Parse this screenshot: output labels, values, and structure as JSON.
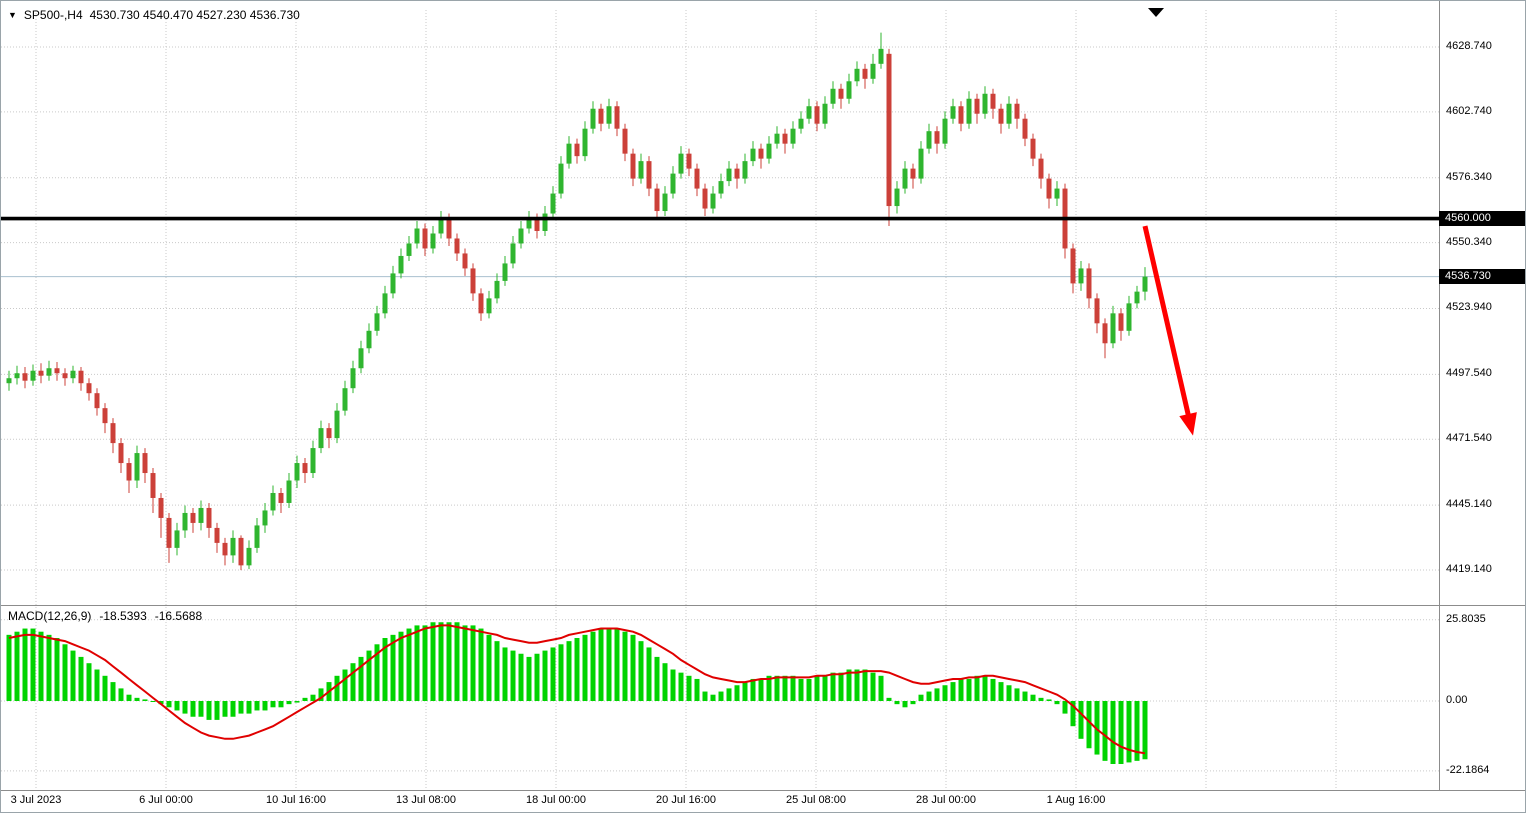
{
  "header": {
    "symbol_timeframe": "SP500-,H4",
    "ohlc": "4530.730 4540.470 4527.230 4536.730"
  },
  "macd_header": {
    "label": "MACD(12,26,9)",
    "main_value": "-18.5393",
    "signal_value": "-16.5688"
  },
  "colors": {
    "candle_up": "#2fb52f",
    "candle_down": "#cc4039",
    "macd_hist": "#00d300",
    "macd_signal": "#e00000",
    "grid": "#c9c9c9",
    "divider": "#8c8c8c",
    "arrow": "#ff0000",
    "level_line": "#000000",
    "current_price_line": "#a9c0cf",
    "badge_bg": "#000000",
    "badge_text": "#ffffff"
  },
  "chart_data": {
    "type": "candlestick",
    "title": "SP500-,H4",
    "last_ohlc": {
      "open": 4530.73,
      "high": 4540.47,
      "low": 4527.23,
      "close": 4536.73
    },
    "ylim": [
      4406,
      4645
    ],
    "y_ticks": [
      4628.74,
      4602.74,
      4576.34,
      4550.34,
      4523.94,
      4497.54,
      4471.54,
      4445.14,
      4419.14
    ],
    "x_tick_labels": [
      "3 Jul 2023",
      "6 Jul 00:00",
      "10 Jul 16:00",
      "13 Jul 08:00",
      "18 Jul 00:00",
      "20 Jul 16:00",
      "25 Jul 08:00",
      "28 Jul 00:00",
      "1 Aug 16:00"
    ],
    "horizontal_lines": [
      {
        "name": "resistance-level",
        "price": 4560.0,
        "label": "4560.000",
        "style": "solid-black-thick"
      },
      {
        "name": "current-price",
        "price": 4536.73,
        "label": "4536.730",
        "style": "thin-light-blue"
      }
    ],
    "candles": [
      [
        4494,
        4499,
        4491,
        4496
      ],
      [
        4496,
        4501,
        4493.5,
        4498
      ],
      [
        4498,
        4500.5,
        4492,
        4495
      ],
      [
        4495,
        4501.5,
        4493,
        4499
      ],
      [
        4499,
        4502,
        4494,
        4497
      ],
      [
        4497,
        4503,
        4495,
        4500
      ],
      [
        4500,
        4502.5,
        4495,
        4498
      ],
      [
        4498,
        4500,
        4493,
        4496
      ],
      [
        4496,
        4501,
        4494,
        4499
      ],
      [
        4499,
        4500.5,
        4491,
        4494
      ],
      [
        4494,
        4496,
        4487,
        4490
      ],
      [
        4490,
        4492,
        4481,
        4484
      ],
      [
        4484,
        4486,
        4474,
        4478
      ],
      [
        4478,
        4480,
        4466,
        4470
      ],
      [
        4470,
        4472,
        4458,
        4462
      ],
      [
        4462,
        4464,
        4450,
        4455
      ],
      [
        4455,
        4469,
        4452,
        4466
      ],
      [
        4466,
        4468,
        4454,
        4458
      ],
      [
        4458,
        4460,
        4442,
        4448
      ],
      [
        4448,
        4450,
        4432,
        4440
      ],
      [
        4440,
        4442,
        4422,
        4428
      ],
      [
        4428,
        4438,
        4425,
        4435
      ],
      [
        4435,
        4445,
        4432,
        4442
      ],
      [
        4442,
        4444,
        4434,
        4438
      ],
      [
        4438,
        4447,
        4435,
        4444
      ],
      [
        4444,
        4446,
        4432,
        4436
      ],
      [
        4436,
        4438,
        4426,
        4430
      ],
      [
        4430,
        4432,
        4421,
        4425
      ],
      [
        4425,
        4435,
        4422,
        4432
      ],
      [
        4432,
        4433,
        4419.1,
        4421
      ],
      [
        4421,
        4431,
        4419.5,
        4428
      ],
      [
        4428,
        4440,
        4426,
        4437
      ],
      [
        4437,
        4446,
        4434,
        4443
      ],
      [
        4443,
        4453,
        4441,
        4450
      ],
      [
        4450,
        4452,
        4442,
        4446
      ],
      [
        4446,
        4458,
        4444,
        4455
      ],
      [
        4455,
        4465,
        4452,
        4462
      ],
      [
        4462,
        4464,
        4454,
        4458
      ],
      [
        4458,
        4471,
        4456,
        4468
      ],
      [
        4468,
        4479,
        4466,
        4476
      ],
      [
        4476,
        4478,
        4468,
        4472
      ],
      [
        4472,
        4486,
        4470,
        4483
      ],
      [
        4483,
        4495,
        4481,
        4492
      ],
      [
        4492,
        4503,
        4490,
        4500
      ],
      [
        4500,
        4511,
        4498,
        4508
      ],
      [
        4508,
        4518,
        4506,
        4515
      ],
      [
        4515,
        4525,
        4513,
        4522
      ],
      [
        4522,
        4533,
        4520,
        4530
      ],
      [
        4530,
        4541,
        4528,
        4538
      ],
      [
        4538,
        4548,
        4536,
        4545
      ],
      [
        4545,
        4553,
        4543,
        4550
      ],
      [
        4550,
        4559,
        4548,
        4556
      ],
      [
        4556,
        4558,
        4545,
        4548
      ],
      [
        4548,
        4557,
        4546,
        4554
      ],
      [
        4554,
        4563,
        4552,
        4560
      ],
      [
        4560,
        4562,
        4549,
        4552
      ],
      [
        4552,
        4554,
        4543,
        4546
      ],
      [
        4546,
        4548,
        4537,
        4540
      ],
      [
        4540,
        4542,
        4527,
        4530
      ],
      [
        4530,
        4532,
        4519,
        4522
      ],
      [
        4522,
        4531,
        4520,
        4528
      ],
      [
        4528,
        4538,
        4526,
        4535
      ],
      [
        4535,
        4545,
        4533,
        4542
      ],
      [
        4542,
        4553,
        4540,
        4550
      ],
      [
        4550,
        4559,
        4548,
        4556
      ],
      [
        4556,
        4563,
        4554,
        4560
      ],
      [
        4560,
        4562,
        4552,
        4555
      ],
      [
        4555,
        4565,
        4553,
        4562
      ],
      [
        4562,
        4573,
        4560,
        4570
      ],
      [
        4570,
        4585,
        4568,
        4582
      ],
      [
        4582,
        4593,
        4580,
        4590
      ],
      [
        4590,
        4592,
        4582,
        4585
      ],
      [
        4585,
        4599,
        4583,
        4596
      ],
      [
        4596,
        4607,
        4594,
        4604
      ],
      [
        4604,
        4606,
        4595,
        4598
      ],
      [
        4598,
        4608,
        4596,
        4605
      ],
      [
        4605,
        4607,
        4593,
        4596
      ],
      [
        4596,
        4598,
        4583,
        4586
      ],
      [
        4586,
        4588,
        4573,
        4576
      ],
      [
        4576,
        4586,
        4574,
        4583
      ],
      [
        4583,
        4585,
        4569,
        4572
      ],
      [
        4572,
        4574,
        4560,
        4563
      ],
      [
        4563,
        4573,
        4561,
        4570
      ],
      [
        4570,
        4581,
        4568,
        4578
      ],
      [
        4578,
        4589,
        4576,
        4586
      ],
      [
        4586,
        4588,
        4577,
        4580
      ],
      [
        4580,
        4582,
        4569,
        4572
      ],
      [
        4572,
        4574,
        4561,
        4564
      ],
      [
        4564,
        4573,
        4562,
        4570
      ],
      [
        4570,
        4578,
        4568,
        4575
      ],
      [
        4575,
        4583,
        4573,
        4580
      ],
      [
        4580,
        4582,
        4572,
        4576
      ],
      [
        4576,
        4586,
        4574,
        4583
      ],
      [
        4583,
        4591,
        4581,
        4588
      ],
      [
        4588,
        4590,
        4580,
        4584
      ],
      [
        4584,
        4593,
        4582,
        4590
      ],
      [
        4590,
        4597,
        4588,
        4594
      ],
      [
        4594,
        4596,
        4586,
        4590
      ],
      [
        4590,
        4599,
        4588,
        4596
      ],
      [
        4596,
        4603,
        4594,
        4600
      ],
      [
        4600,
        4608,
        4598,
        4605
      ],
      [
        4605,
        4607,
        4595,
        4598
      ],
      [
        4598,
        4609,
        4596,
        4606
      ],
      [
        4606,
        4615,
        4604,
        4612
      ],
      [
        4612,
        4614,
        4604,
        4608
      ],
      [
        4608,
        4618,
        4606,
        4615
      ],
      [
        4615,
        4623,
        4613,
        4620
      ],
      [
        4620,
        4622,
        4612,
        4616
      ],
      [
        4616,
        4626,
        4614,
        4622
      ],
      [
        4622,
        4634.5,
        4620,
        4628
      ],
      [
        4626,
        4628,
        4557,
        4565
      ],
      [
        4565,
        4575,
        4562,
        4572
      ],
      [
        4572,
        4583,
        4570,
        4580
      ],
      [
        4580,
        4582,
        4572,
        4576
      ],
      [
        4576,
        4591,
        4574,
        4588
      ],
      [
        4588,
        4598,
        4586,
        4595
      ],
      [
        4595,
        4597,
        4586,
        4590
      ],
      [
        4590,
        4603,
        4588,
        4600
      ],
      [
        4600,
        4608,
        4598,
        4605
      ],
      [
        4605,
        4607,
        4595,
        4598
      ],
      [
        4598,
        4611,
        4596,
        4608
      ],
      [
        4608,
        4610,
        4598,
        4602
      ],
      [
        4602,
        4613,
        4600,
        4610
      ],
      [
        4610,
        4612,
        4600,
        4604
      ],
      [
        4604,
        4606,
        4594,
        4598
      ],
      [
        4598,
        4609,
        4596,
        4606
      ],
      [
        4606,
        4608,
        4596,
        4600
      ],
      [
        4600,
        4602,
        4589,
        4592
      ],
      [
        4592,
        4594,
        4581,
        4584
      ],
      [
        4584,
        4586,
        4572,
        4576
      ],
      [
        4576,
        4578,
        4564,
        4568
      ],
      [
        4568,
        4575,
        4565,
        4572
      ],
      [
        4572,
        4574,
        4544,
        4548
      ],
      [
        4548,
        4550,
        4530,
        4534
      ],
      [
        4534,
        4543,
        4531,
        4540
      ],
      [
        4540,
        4542,
        4524,
        4528
      ],
      [
        4528,
        4530,
        4514,
        4518
      ],
      [
        4518,
        4520,
        4504,
        4510
      ],
      [
        4510,
        4525,
        4508,
        4522
      ],
      [
        4522,
        4524,
        4511,
        4515
      ],
      [
        4515,
        4529,
        4513,
        4526
      ],
      [
        4526,
        4533,
        4524,
        4530.7
      ],
      [
        4530.7,
        4540.5,
        4527.2,
        4536.7
      ]
    ],
    "indicator": {
      "name": "MACD",
      "params": [
        12,
        26,
        9
      ],
      "main_value": -18.5393,
      "signal_value": -16.5688,
      "y_tick_labels": [
        "25.8035",
        "0.00",
        "-22.1864"
      ],
      "y_tick_values": [
        25.8035,
        0,
        -22.1864
      ],
      "histogram": [
        21,
        22,
        23,
        23,
        22,
        21,
        20,
        18,
        16,
        14,
        12,
        10,
        8,
        6,
        4,
        2,
        1,
        0.5,
        0,
        -1,
        -2,
        -3,
        -4,
        -5,
        -5,
        -6,
        -6,
        -5,
        -5,
        -4,
        -4,
        -3,
        -3,
        -2,
        -2,
        -1,
        -0.5,
        1,
        2,
        4,
        6,
        8,
        10,
        12,
        14,
        16,
        18,
        20,
        21,
        22,
        23,
        24,
        24,
        25,
        25,
        25,
        25,
        24,
        24,
        23,
        21,
        19,
        17,
        16,
        15,
        14,
        15,
        16,
        17,
        18,
        19,
        20,
        21,
        22,
        23,
        23,
        23,
        22,
        21,
        19,
        17,
        14,
        12,
        10,
        9,
        8,
        7,
        3,
        2,
        3,
        4,
        5,
        6,
        7,
        7,
        8,
        8,
        8,
        8,
        7,
        7,
        8,
        8,
        9,
        9,
        10,
        10,
        10,
        9,
        8,
        1,
        -1,
        -2,
        -1,
        2,
        3,
        4,
        5,
        6,
        7,
        7,
        8,
        8,
        7,
        6,
        5,
        4,
        3,
        2,
        1,
        0.5,
        -1,
        -4,
        -8,
        -12,
        -15,
        -17,
        -19,
        -20,
        -20,
        -19.5,
        -19,
        -18.5
      ],
      "signal": [
        20,
        20.5,
        21,
        21,
        20.5,
        20,
        19.5,
        19,
        18,
        17,
        16,
        14.5,
        13,
        11,
        9,
        7,
        5,
        3,
        1,
        -1,
        -3,
        -5,
        -7,
        -8.5,
        -10,
        -11,
        -11.5,
        -12,
        -12,
        -11.5,
        -11,
        -10,
        -9,
        -8,
        -6.5,
        -5,
        -3.5,
        -2,
        -0.5,
        1,
        3,
        5,
        7,
        9,
        11,
        13,
        15,
        17,
        18.5,
        20,
        21,
        22,
        23,
        23.5,
        24,
        24,
        23.5,
        23,
        22.5,
        22,
        21.5,
        21,
        20,
        19.5,
        19,
        18.5,
        18.5,
        19,
        19.5,
        20,
        21,
        21.5,
        22,
        22.5,
        23,
        23,
        23,
        22.5,
        22,
        21,
        19.5,
        18,
        16.5,
        15,
        13,
        11.5,
        10,
        8.5,
        7.5,
        7,
        6.5,
        6,
        6,
        6.5,
        7,
        7,
        7.5,
        7.5,
        7.5,
        7.5,
        7.5,
        8,
        8,
        8.5,
        8.5,
        9,
        9,
        9.5,
        9.5,
        9.5,
        9,
        8,
        7,
        6,
        5.5,
        5.5,
        6,
        6.5,
        7,
        7,
        7.5,
        7.5,
        8,
        8,
        7.5,
        7,
        6.5,
        6,
        5,
        4,
        3,
        2,
        0.5,
        -1.5,
        -4,
        -6.5,
        -9,
        -11,
        -13,
        -14.5,
        -15.5,
        -16.2,
        -16.6
      ]
    },
    "annotations": [
      {
        "type": "arrow",
        "direction": "down-right",
        "color": "#ff0000",
        "from": {
          "bar": 142,
          "price": 4557
        },
        "to": {
          "bar": 148,
          "price": 4473
        }
      }
    ]
  }
}
